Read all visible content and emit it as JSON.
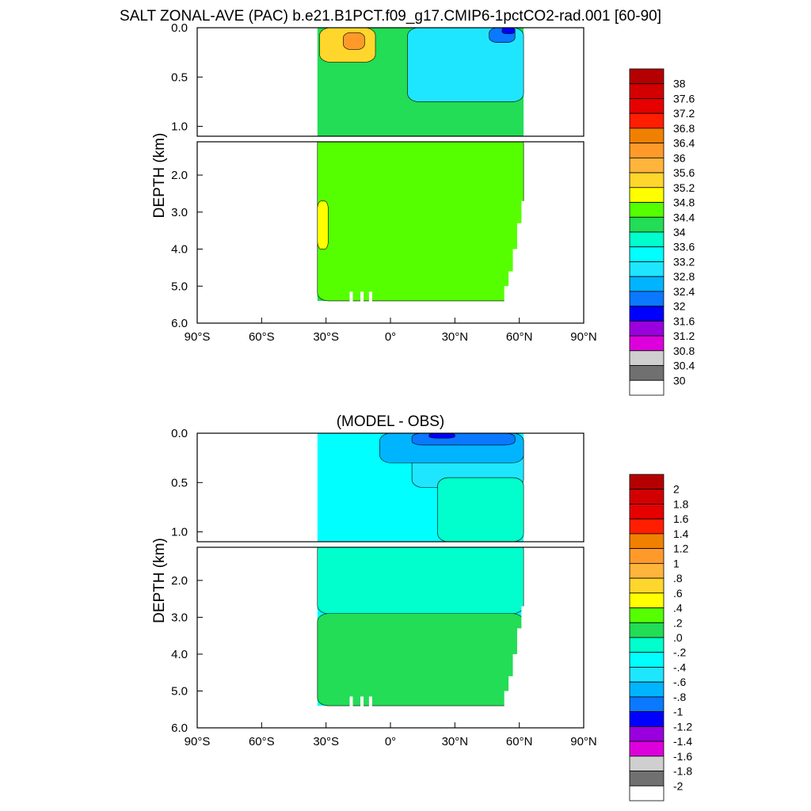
{
  "title": "SALT ZONAL-AVE (PAC) b.e21.B1PCT.f09_g17.CMIP6-1pctCO2-rad.001 [60-90]",
  "chart_data": [
    {
      "type": "heatmap",
      "subtitle": "",
      "ylabel": "DEPTH (km)",
      "x_ticks": [
        "90°S",
        "60°S",
        "30°S",
        "0°",
        "30°N",
        "60°N",
        "90°N"
      ],
      "x_range": [
        -90,
        90
      ],
      "y_range": [
        0,
        6
      ],
      "y_break": 1.1,
      "y_ticks_upper": [
        "0.0",
        "0.5",
        "1.0"
      ],
      "y_ticks_lower": [
        "2.0",
        "3.0",
        "4.0",
        "5.0",
        "6.0"
      ],
      "colorbar_labels": [
        "38",
        "37.6",
        "37.2",
        "36.8",
        "36.4",
        "36",
        "35.6",
        "35.2",
        "34.8",
        "34.4",
        "34",
        "33.6",
        "33.2",
        "32.8",
        "32.4",
        "32",
        "31.6",
        "31.2",
        "30.8",
        "30.4",
        "30"
      ],
      "colors": [
        "#b40000",
        "#d20000",
        "#e60000",
        "#ff1e00",
        "#f08000",
        "#ff9a2a",
        "#ffb43c",
        "#ffd62c",
        "#ffff00",
        "#55ff00",
        "#22dd55",
        "#00ffcc",
        "#00ffff",
        "#1ee6ff",
        "#00b4ff",
        "#0a78ff",
        "#0000ff",
        "#9900dd",
        "#dd00dd",
        "#cfcfcf",
        "#707070",
        "#ffffff"
      ],
      "ocean_extent": {
        "lat_south": -34,
        "lat_north": 62,
        "bottom_depth_km": 5.4
      },
      "background_class": 10,
      "regions": [
        {
          "class": 7,
          "depth_range": [
            0.0,
            0.35
          ],
          "lat_range": [
            -33,
            -7
          ]
        },
        {
          "class": 5,
          "depth_range": [
            0.05,
            0.22
          ],
          "lat_range": [
            -22,
            -12
          ]
        },
        {
          "class": 13,
          "depth_range": [
            0.0,
            0.75
          ],
          "lat_range": [
            8,
            62
          ]
        },
        {
          "class": 15,
          "depth_range": [
            0.0,
            0.15
          ],
          "lat_range": [
            46,
            58
          ]
        },
        {
          "class": 16,
          "depth_range": [
            0.0,
            0.06
          ],
          "lat_range": [
            52,
            58
          ]
        },
        {
          "class": 9,
          "depth_range": [
            1.1,
            5.4
          ],
          "lat_range": [
            -34,
            62
          ]
        },
        {
          "class": 8,
          "depth_range": [
            2.7,
            4.0
          ],
          "lat_range": [
            -34,
            -29
          ]
        }
      ]
    },
    {
      "type": "heatmap",
      "subtitle": "(MODEL - OBS)",
      "ylabel": "DEPTH (km)",
      "x_ticks": [
        "90°S",
        "60°S",
        "30°S",
        "0°",
        "30°N",
        "60°N",
        "90°N"
      ],
      "x_range": [
        -90,
        90
      ],
      "y_range": [
        0,
        6
      ],
      "y_break": 1.1,
      "y_ticks_upper": [
        "0.0",
        "0.5",
        "1.0"
      ],
      "y_ticks_lower": [
        "2.0",
        "3.0",
        "4.0",
        "5.0",
        "6.0"
      ],
      "colorbar_labels": [
        "2",
        "1.8",
        "1.6",
        "1.4",
        "1.2",
        "1",
        ".8",
        ".6",
        ".4",
        ".2",
        ".0",
        "-.2",
        "-.4",
        "-.6",
        "-.8",
        "-1",
        "-1.2",
        "-1.4",
        "-1.6",
        "-1.8",
        "-2"
      ],
      "colors": [
        "#b40000",
        "#d20000",
        "#e60000",
        "#ff1e00",
        "#f08000",
        "#ff9a2a",
        "#ffb43c",
        "#ffd62c",
        "#ffff00",
        "#55ff00",
        "#22dd55",
        "#00ffcc",
        "#00ffff",
        "#1ee6ff",
        "#00b4ff",
        "#0a78ff",
        "#0000ff",
        "#9900dd",
        "#dd00dd",
        "#cfcfcf",
        "#707070",
        "#ffffff"
      ],
      "ocean_extent": {
        "lat_south": -34,
        "lat_north": 62,
        "bottom_depth_km": 5.4
      },
      "background_class": 12,
      "regions": [
        {
          "class": 13,
          "depth_range": [
            0.0,
            0.55
          ],
          "lat_range": [
            10,
            62
          ]
        },
        {
          "class": 14,
          "depth_range": [
            0.0,
            0.3
          ],
          "lat_range": [
            -5,
            62
          ]
        },
        {
          "class": 15,
          "depth_range": [
            0.0,
            0.12
          ],
          "lat_range": [
            10,
            58
          ]
        },
        {
          "class": 16,
          "depth_range": [
            0.0,
            0.05
          ],
          "lat_range": [
            18,
            30
          ]
        },
        {
          "class": 11,
          "depth_range": [
            0.45,
            1.1
          ],
          "lat_range": [
            22,
            62
          ]
        },
        {
          "class": 11,
          "depth_range": [
            1.1,
            2.9
          ],
          "lat_range": [
            -34,
            62
          ]
        },
        {
          "class": 10,
          "depth_range": [
            2.9,
            5.4
          ],
          "lat_range": [
            -34,
            62
          ]
        }
      ]
    }
  ]
}
